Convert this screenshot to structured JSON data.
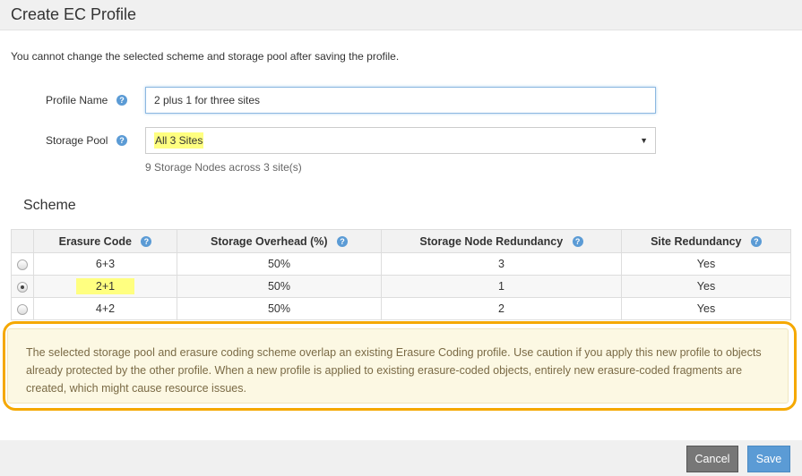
{
  "header": {
    "title": "Create EC Profile"
  },
  "notice": "You cannot change the selected scheme and storage pool after saving the profile.",
  "form": {
    "profile_name": {
      "label": "Profile Name",
      "value": "2 plus 1 for three sites"
    },
    "storage_pool": {
      "label": "Storage Pool",
      "value": "All 3 Sites",
      "helper": "9 Storage Nodes across 3 site(s)"
    }
  },
  "scheme": {
    "title": "Scheme",
    "columns": [
      "Erasure Code",
      "Storage Overhead (%)",
      "Storage Node Redundancy",
      "Site Redundancy"
    ],
    "rows": [
      {
        "code": "6+3",
        "overhead": "50%",
        "node_redundancy": "3",
        "site_redundancy": "Yes",
        "selected": false
      },
      {
        "code": "2+1",
        "overhead": "50%",
        "node_redundancy": "1",
        "site_redundancy": "Yes",
        "selected": true
      },
      {
        "code": "4+2",
        "overhead": "50%",
        "node_redundancy": "2",
        "site_redundancy": "Yes",
        "selected": false
      }
    ]
  },
  "warning": "The selected storage pool and erasure coding scheme overlap an existing Erasure Coding profile. Use caution if you apply this new profile to objects already protected by the other profile. When a new profile is applied to existing erasure-coded objects, entirely new erasure-coded fragments are created, which might cause resource issues.",
  "footer": {
    "cancel": "Cancel",
    "save": "Save"
  },
  "help_glyph": "?",
  "colors": {
    "highlight": "#ffff80",
    "warning_outline": "#f5a800",
    "save": "#5b9bd5",
    "cancel": "#777777"
  }
}
